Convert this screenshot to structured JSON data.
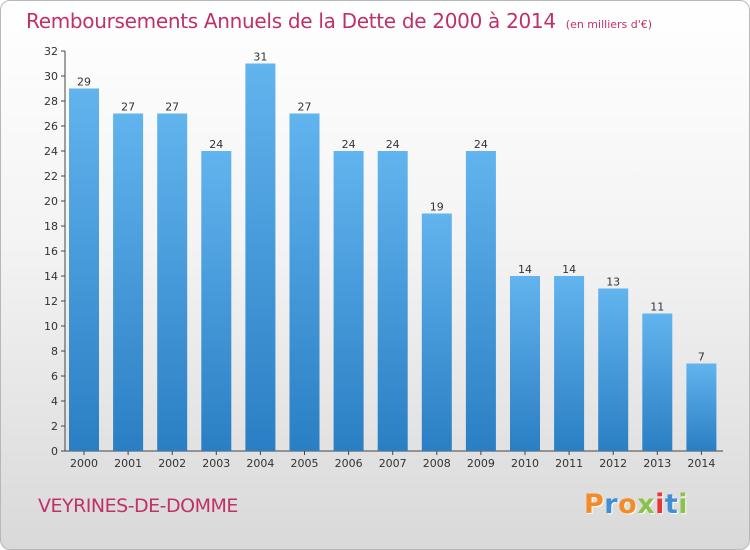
{
  "header": {
    "title": "Remboursements Annuels de la Dette de 2000 à 2014",
    "unit": "(en milliers d'€)"
  },
  "footer": {
    "location": "VEYRINES-DE-DOMME",
    "brand": "Proxiti"
  },
  "colors": {
    "title": "#c0306a",
    "bar_light": "#62b4ee",
    "bar_dark": "#2a7fc4",
    "logo_letters": [
      "#f28c28",
      "#3f8fd2",
      "#f28c28",
      "#8bc34a",
      "#e53935",
      "#3f8fd2",
      "#8bc34a"
    ]
  },
  "chart_data": {
    "type": "bar",
    "title": "Remboursements Annuels de la Dette de 2000 à 2014",
    "subtitle": "(en milliers d'€)",
    "categories": [
      "2000",
      "2001",
      "2002",
      "2003",
      "2004",
      "2005",
      "2006",
      "2007",
      "2008",
      "2009",
      "2010",
      "2011",
      "2012",
      "2013",
      "2014"
    ],
    "values": [
      29,
      27,
      27,
      24,
      31,
      27,
      24,
      24,
      19,
      24,
      14,
      14,
      13,
      11,
      7
    ],
    "ylim": [
      0,
      32
    ],
    "yticks": [
      0,
      2,
      4,
      6,
      8,
      10,
      12,
      14,
      16,
      18,
      20,
      22,
      24,
      26,
      28,
      30,
      32
    ],
    "grid": false,
    "legend": "none"
  }
}
